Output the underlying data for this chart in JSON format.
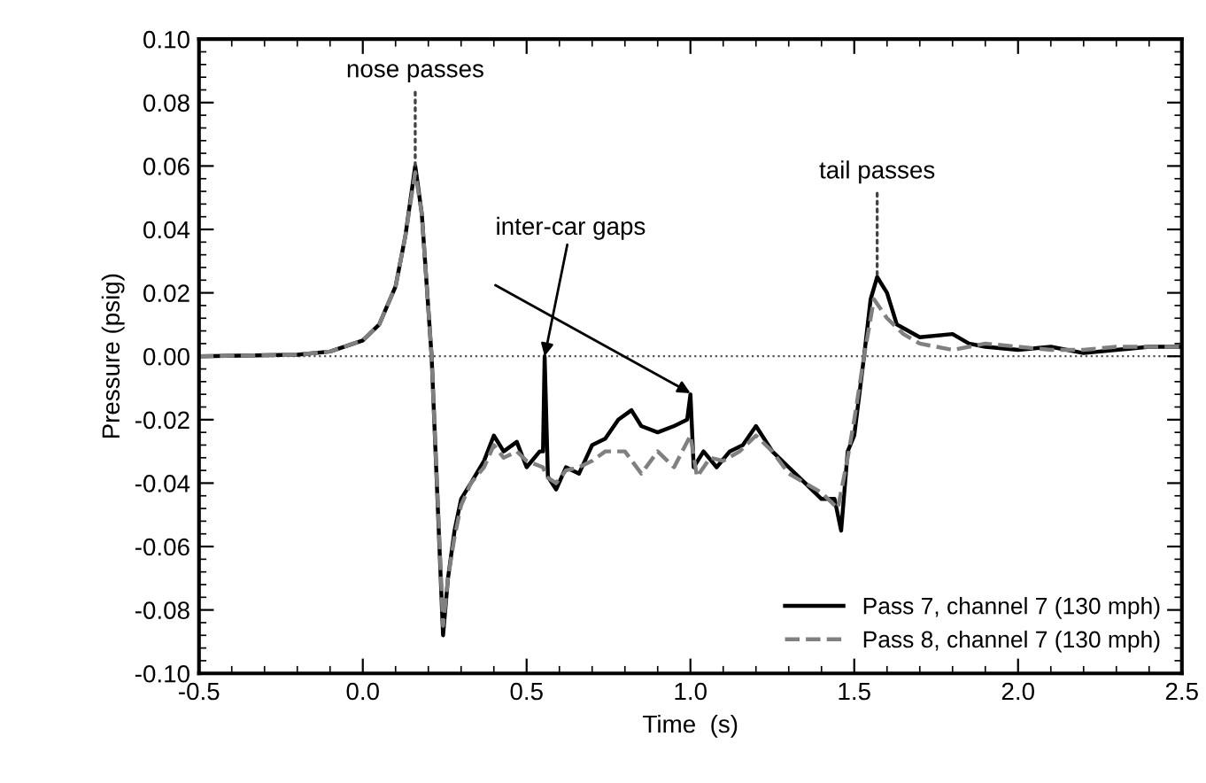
{
  "chart_data": {
    "type": "line",
    "xlabel": "Time  (s)",
    "ylabel": "Pressure (psig)",
    "xlim": [
      -0.5,
      2.5
    ],
    "ylim": [
      -0.1,
      0.1
    ],
    "xticks": [
      {
        "value": -0.5,
        "label": "-0.5"
      },
      {
        "value": 0,
        "label": "0.0"
      },
      {
        "value": 0.5,
        "label": "0.5"
      },
      {
        "value": 1,
        "label": "1.0"
      },
      {
        "value": 1.5,
        "label": "1.5"
      },
      {
        "value": 2,
        "label": "2.0"
      },
      {
        "value": 2.5,
        "label": "2.5"
      }
    ],
    "yticks": [
      {
        "value": -0.1,
        "label": "-0.10"
      },
      {
        "value": -0.08,
        "label": "-0.08"
      },
      {
        "value": -0.06,
        "label": "-0.06"
      },
      {
        "value": -0.04,
        "label": "-0.04"
      },
      {
        "value": -0.02,
        "label": "-0.02"
      },
      {
        "value": 0,
        "label": "0.00"
      },
      {
        "value": 0.02,
        "label": "0.02"
      },
      {
        "value": 0.04,
        "label": "0.04"
      },
      {
        "value": 0.06,
        "label": "0.06"
      },
      {
        "value": 0.08,
        "label": "0.08"
      },
      {
        "value": 0.1,
        "label": "0.10"
      }
    ],
    "grid": false,
    "legend": "bottom right",
    "ref_lines": [
      {
        "axis": "y",
        "value": 0,
        "label": null,
        "color": "#555555",
        "line_style": "dotted"
      }
    ],
    "annotations": [
      {
        "text": "nose passes",
        "x": 0.16,
        "y": 0.06
      },
      {
        "text": "tail passes",
        "x": 1.57,
        "y": 0.025
      },
      {
        "text": "inter-car gaps",
        "x": 0.555,
        "y": 0.0
      }
    ],
    "series": [
      {
        "name": "Pass 7, channel 7 (130 mph)",
        "color": "#000000",
        "line_style": "solid",
        "x": [
          -0.5,
          -0.2,
          -0.1,
          0.0,
          0.05,
          0.1,
          0.13,
          0.16,
          0.18,
          0.21,
          0.245,
          0.26,
          0.28,
          0.3,
          0.33,
          0.37,
          0.4,
          0.43,
          0.47,
          0.5,
          0.54,
          0.55,
          0.555,
          0.565,
          0.59,
          0.62,
          0.66,
          0.7,
          0.74,
          0.78,
          0.82,
          0.85,
          0.9,
          0.95,
          0.99,
          1.0,
          1.01,
          1.04,
          1.08,
          1.12,
          1.16,
          1.2,
          1.25,
          1.3,
          1.35,
          1.4,
          1.44,
          1.46,
          1.48,
          1.5,
          1.53,
          1.55,
          1.57,
          1.6,
          1.63,
          1.7,
          1.8,
          1.85,
          1.9,
          2.0,
          2.1,
          2.2,
          2.3,
          2.4,
          2.5
        ],
        "values": [
          0,
          0.0005,
          0.0015,
          0.005,
          0.01,
          0.022,
          0.038,
          0.06,
          0.045,
          0.0,
          -0.088,
          -0.07,
          -0.055,
          -0.045,
          -0.04,
          -0.033,
          -0.025,
          -0.03,
          -0.027,
          -0.035,
          -0.03,
          -0.03,
          0.0,
          -0.038,
          -0.042,
          -0.035,
          -0.037,
          -0.028,
          -0.026,
          -0.02,
          -0.017,
          -0.022,
          -0.024,
          -0.022,
          -0.02,
          -0.012,
          -0.035,
          -0.03,
          -0.035,
          -0.03,
          -0.028,
          -0.022,
          -0.03,
          -0.035,
          -0.04,
          -0.045,
          -0.045,
          -0.055,
          -0.03,
          -0.025,
          0.0,
          0.018,
          0.025,
          0.02,
          0.01,
          0.006,
          0.007,
          0.004,
          0.003,
          0.002,
          0.003,
          0.001,
          0.002,
          0.003,
          0.003
        ]
      },
      {
        "name": "Pass 8, channel 7 (130 mph)",
        "color": "#808080",
        "line_style": "dashed",
        "x": [
          -0.5,
          -0.2,
          -0.1,
          0.0,
          0.05,
          0.1,
          0.13,
          0.16,
          0.18,
          0.21,
          0.245,
          0.26,
          0.28,
          0.3,
          0.33,
          0.37,
          0.4,
          0.43,
          0.47,
          0.5,
          0.55,
          0.56,
          0.59,
          0.62,
          0.66,
          0.7,
          0.74,
          0.8,
          0.85,
          0.9,
          0.95,
          1.0,
          1.02,
          1.06,
          1.1,
          1.15,
          1.2,
          1.25,
          1.3,
          1.35,
          1.4,
          1.45,
          1.48,
          1.5,
          1.53,
          1.56,
          1.6,
          1.65,
          1.7,
          1.8,
          1.9,
          2.0,
          2.1,
          2.2,
          2.3,
          2.4,
          2.5
        ],
        "values": [
          0,
          0.0005,
          0.0015,
          0.005,
          0.01,
          0.022,
          0.038,
          0.058,
          0.045,
          0.0,
          -0.085,
          -0.07,
          -0.057,
          -0.047,
          -0.04,
          -0.035,
          -0.028,
          -0.032,
          -0.03,
          -0.033,
          -0.035,
          -0.038,
          -0.04,
          -0.036,
          -0.035,
          -0.033,
          -0.03,
          -0.03,
          -0.037,
          -0.03,
          -0.035,
          -0.025,
          -0.038,
          -0.032,
          -0.033,
          -0.03,
          -0.025,
          -0.03,
          -0.037,
          -0.04,
          -0.043,
          -0.048,
          -0.032,
          -0.02,
          0.0,
          0.018,
          0.012,
          0.007,
          0.004,
          0.002,
          0.004,
          0.003,
          0.002,
          0.002,
          0.003,
          0.003,
          0.003
        ]
      }
    ]
  }
}
